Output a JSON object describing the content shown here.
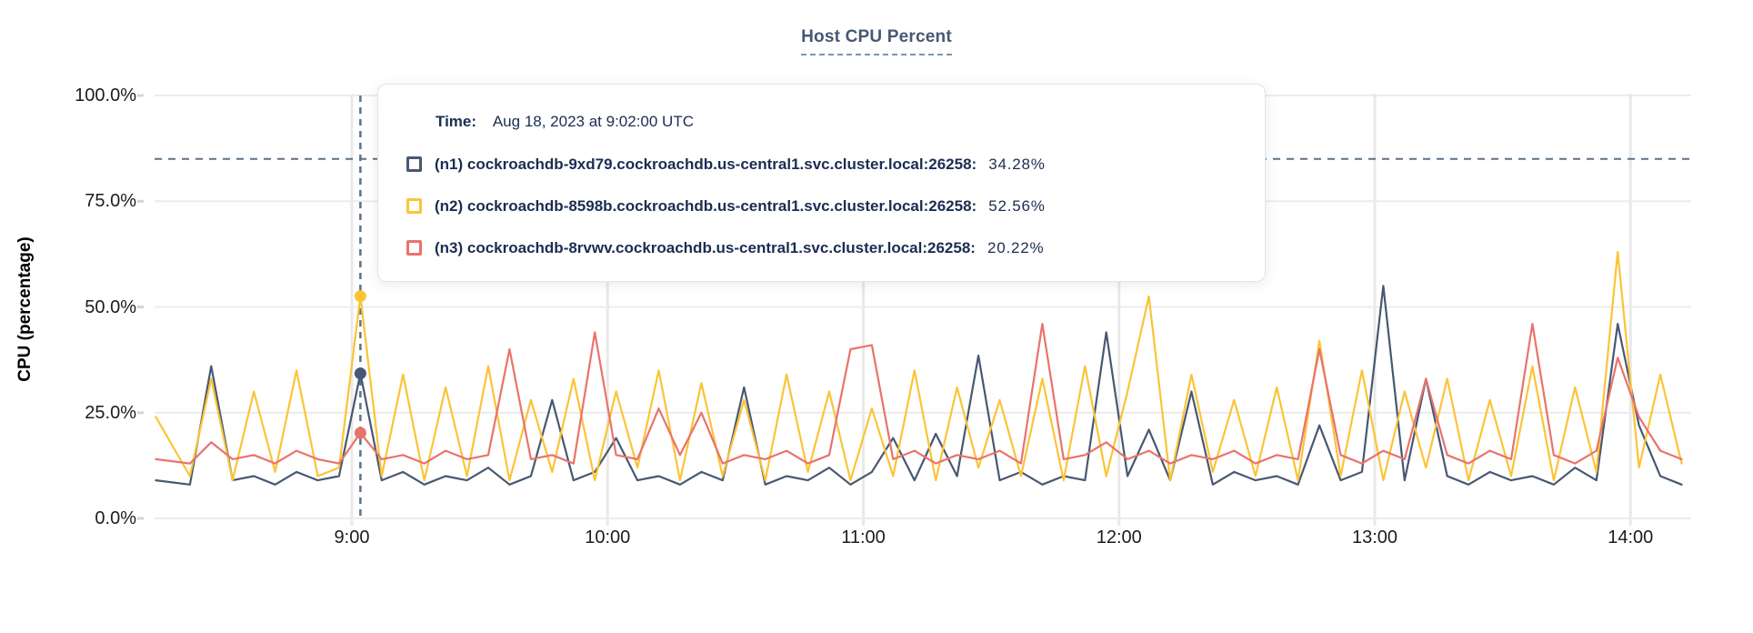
{
  "chart": {
    "title": "Host CPU Percent",
    "ylabel": "CPU (percentage)"
  },
  "tooltip": {
    "time_label": "Time:",
    "time_value": "Aug 18, 2023 at 9:02:00 UTC",
    "rows": [
      {
        "label": "(n1) cockroachdb-9xd79.cockroachdb.us-central1.svc.cluster.local:26258:",
        "value": "34.28%",
        "color": "#475872"
      },
      {
        "label": "(n2) cockroachdb-8598b.cockroachdb.us-central1.svc.cluster.local:26258:",
        "value": "52.56%",
        "color": "#fbc437"
      },
      {
        "label": "(n3) cockroachdb-8rvwv.cockroachdb.us-central1.svc.cluster.local:26258:",
        "value": "20.22%",
        "color": "#e9736c"
      }
    ]
  },
  "chart_data": {
    "type": "line",
    "title": "Host CPU Percent",
    "xlabel": "",
    "ylabel": "CPU (percentage)",
    "ylim": [
      0,
      100
    ],
    "grid": true,
    "legend_position": "tooltip-overlay",
    "threshold_line": {
      "value": 85,
      "style": "dashed",
      "color": "#5c7287"
    },
    "yticks": {
      "values": [
        0,
        25,
        50,
        75,
        100
      ],
      "labels": [
        "0.0%",
        "25.0%",
        "50.0%",
        "75.0%",
        "100.0%"
      ]
    },
    "xticks": {
      "minutes": [
        540,
        600,
        660,
        720,
        780,
        840
      ],
      "labels": [
        "9:00",
        "10:00",
        "11:00",
        "12:00",
        "13:00",
        "14:00"
      ]
    },
    "hover": {
      "x_minute": 542,
      "time_text": "Aug 18, 2023 at 9:02:00 UTC",
      "values": [
        34.28,
        52.56,
        20.22
      ],
      "line_color": "#5c7287"
    },
    "x_minutes": [
      494,
      502,
      507,
      512,
      517,
      522,
      527,
      532,
      537,
      542,
      547,
      552,
      557,
      562,
      567,
      572,
      577,
      582,
      587,
      592,
      597,
      602,
      607,
      612,
      617,
      622,
      627,
      632,
      637,
      642,
      647,
      652,
      657,
      662,
      667,
      672,
      677,
      682,
      687,
      692,
      697,
      702,
      707,
      712,
      717,
      722,
      727,
      732,
      737,
      742,
      747,
      752,
      757,
      762,
      767,
      772,
      777,
      782,
      787,
      792,
      797,
      802,
      807,
      812,
      817,
      822,
      827,
      832,
      837,
      842,
      847,
      852
    ],
    "series": [
      {
        "name": "(n1) cockroachdb-9xd79.cockroachdb.us-central1.svc.cluster.local:26258",
        "color": "#475872",
        "values": [
          9,
          8,
          36,
          9,
          10,
          8,
          11,
          9,
          10,
          34.28,
          9,
          11,
          8,
          10,
          9,
          12,
          8,
          10,
          28,
          9,
          11,
          19,
          9,
          10,
          8,
          11,
          9,
          31,
          8,
          10,
          9,
          12,
          8,
          11,
          19,
          9,
          20,
          10,
          38.5,
          9,
          11,
          8,
          10,
          9,
          44,
          10,
          21,
          9,
          30,
          8,
          11,
          9,
          10,
          8,
          22,
          9,
          11,
          55,
          9,
          33,
          10,
          8,
          11,
          9,
          10,
          8,
          12,
          9,
          46,
          22,
          10,
          8
        ]
      },
      {
        "name": "(n2) cockroachdb-8598b.cockroachdb.us-central1.svc.cluster.local:26258",
        "color": "#fbc437",
        "values": [
          24,
          10,
          33,
          9,
          30,
          11,
          35,
          10,
          12,
          52.56,
          10,
          34,
          9,
          31,
          10,
          36,
          9,
          28,
          11,
          33,
          9,
          30,
          12,
          35,
          9,
          32,
          10,
          28,
          9,
          34,
          11,
          30,
          9,
          26,
          10,
          35,
          9,
          31,
          12,
          28,
          10,
          33,
          9,
          36,
          10,
          30,
          52.5,
          9,
          34,
          11,
          28,
          10,
          31,
          9,
          42,
          10,
          35,
          9,
          30,
          12,
          33,
          9,
          28,
          10,
          36,
          9,
          31,
          11,
          63,
          12,
          34,
          13
        ]
      },
      {
        "name": "(n3) cockroachdb-8rvwv.cockroachdb.us-central1.svc.cluster.local:26258",
        "color": "#e9736c",
        "values": [
          14,
          13,
          18,
          14,
          15,
          13,
          16,
          14,
          13,
          20.22,
          14,
          15,
          13,
          16,
          14,
          15,
          40,
          14,
          15,
          13,
          44,
          15,
          14,
          26,
          15,
          25,
          13,
          15,
          14,
          16,
          13,
          15,
          40,
          41,
          14,
          16,
          13,
          15,
          14,
          16,
          13,
          46,
          14,
          15,
          18,
          14,
          16,
          13,
          15,
          14,
          16,
          13,
          15,
          14,
          40,
          15,
          13,
          16,
          14,
          33,
          15,
          13,
          16,
          14,
          46,
          15,
          13,
          16,
          38,
          24,
          16,
          14
        ]
      }
    ]
  }
}
